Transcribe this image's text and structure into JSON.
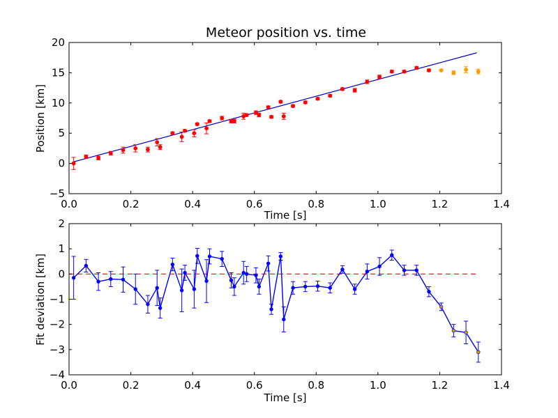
{
  "chart_data": [
    {
      "type": "scatter",
      "title": "Meteor position vs. time",
      "xlabel": "Time [s]",
      "ylabel": "Position [km]",
      "xlim": [
        0.0,
        1.4
      ],
      "ylim": [
        -5,
        20
      ],
      "x_ticks": [
        "0.0",
        "0.2",
        "0.4",
        "0.6",
        "0.8",
        "1.0",
        "1.2",
        "1.4"
      ],
      "y_ticks": [
        "−5",
        "0",
        "5",
        "10",
        "15",
        "20"
      ],
      "grid": false,
      "colors": {
        "data": "#ff0000",
        "excluded": "#ff9900",
        "fit": "#0000cc"
      },
      "fit_line": {
        "x": [
          0.01,
          1.32
        ],
        "y": [
          0.2,
          18.3
        ]
      },
      "series": [
        {
          "role": "data",
          "x": [
            0.015,
            0.055,
            0.095,
            0.135,
            0.175,
            0.215,
            0.255,
            0.285,
            0.295,
            0.335,
            0.365,
            0.375,
            0.405,
            0.415,
            0.445,
            0.455,
            0.495,
            0.525,
            0.535,
            0.565,
            0.575,
            0.605,
            0.615,
            0.645,
            0.655,
            0.685,
            0.695,
            0.725,
            0.765,
            0.805,
            0.845,
            0.885,
            0.925,
            0.965,
            1.005,
            1.045,
            1.085,
            1.125,
            1.165
          ],
          "y": [
            0.0,
            1.1,
            0.9,
            1.7,
            2.2,
            2.5,
            2.3,
            3.5,
            2.7,
            5.0,
            4.4,
            5.4,
            5.0,
            6.5,
            5.8,
            7.0,
            7.5,
            7.0,
            7.0,
            7.8,
            8.0,
            8.4,
            8.0,
            9.3,
            7.7,
            10.2,
            7.8,
            9.5,
            10.1,
            10.7,
            11.2,
            12.3,
            12.1,
            13.5,
            14.3,
            15.2,
            15.2,
            15.8,
            15.4
          ],
          "err": [
            1.0,
            0.3,
            0.3,
            0.3,
            0.5,
            0.6,
            0.4,
            0.6,
            0.4,
            0.2,
            0.8,
            0.2,
            0.6,
            0.2,
            0.9,
            0.2,
            0.3,
            0.3,
            0.3,
            0.5,
            0.2,
            0.3,
            0.3,
            0.2,
            0.2,
            0.2,
            0.5,
            0.2,
            0.2,
            0.2,
            0.2,
            0.2,
            0.3,
            0.3,
            0.3,
            0.2,
            0.2,
            0.2,
            0.2
          ]
        },
        {
          "role": "excluded",
          "x": [
            1.205,
            1.245,
            1.285,
            1.325
          ],
          "y": [
            15.4,
            15.0,
            15.5,
            15.2
          ],
          "err": [
            0.1,
            0.3,
            0.5,
            0.4
          ]
        }
      ]
    },
    {
      "type": "line",
      "title": "",
      "xlabel": "Time [s]",
      "ylabel": "Fit deviation [km]",
      "xlim": [
        0.0,
        1.4
      ],
      "ylim": [
        -4,
        2
      ],
      "x_ticks": [
        "0.0",
        "0.2",
        "0.4",
        "0.6",
        "0.8",
        "1.0",
        "1.2",
        "1.4"
      ],
      "y_ticks": [
        "−4",
        "−3",
        "−2",
        "−1",
        "0",
        "1",
        "2"
      ],
      "grid": false,
      "colors": {
        "line": "#0000ff",
        "excluded": "#cc9900",
        "zero_line": "#ff0000"
      },
      "zero_line": {
        "y": 0,
        "x": [
          0.0,
          1.32
        ]
      },
      "series": [
        {
          "role": "residuals",
          "x": [
            0.015,
            0.055,
            0.095,
            0.135,
            0.175,
            0.215,
            0.255,
            0.285,
            0.295,
            0.335,
            0.365,
            0.375,
            0.405,
            0.415,
            0.445,
            0.455,
            0.495,
            0.525,
            0.535,
            0.565,
            0.575,
            0.605,
            0.615,
            0.645,
            0.655,
            0.685,
            0.695,
            0.725,
            0.765,
            0.805,
            0.845,
            0.885,
            0.925,
            0.965,
            1.005,
            1.045,
            1.085,
            1.125,
            1.165,
            1.205,
            1.245,
            1.285,
            1.325
          ],
          "y": [
            -0.15,
            0.33,
            -0.3,
            -0.2,
            -0.22,
            -0.6,
            -1.2,
            -0.55,
            -1.35,
            0.38,
            -0.65,
            0.05,
            -0.6,
            0.72,
            -0.28,
            0.7,
            0.6,
            -0.25,
            -0.5,
            0.05,
            0.0,
            -0.05,
            -0.5,
            0.42,
            -1.4,
            0.7,
            -1.8,
            -0.55,
            -0.5,
            -0.48,
            -0.55,
            0.18,
            -0.6,
            0.1,
            0.3,
            0.75,
            0.15,
            0.15,
            -0.7,
            -1.3,
            -2.25,
            -2.32,
            -3.1
          ],
          "err": [
            0.85,
            0.25,
            0.35,
            0.3,
            0.5,
            0.6,
            0.35,
            0.7,
            0.4,
            0.25,
            0.85,
            0.3,
            0.75,
            0.3,
            0.85,
            0.3,
            0.3,
            0.3,
            0.35,
            0.45,
            0.3,
            0.3,
            0.3,
            0.3,
            0.2,
            0.15,
            0.5,
            0.25,
            0.2,
            0.2,
            0.2,
            0.15,
            0.2,
            0.3,
            0.35,
            0.2,
            0.2,
            0.2,
            0.2,
            0.15,
            0.25,
            0.45,
            0.4
          ]
        }
      ],
      "excluded_from": 1.2
    }
  ]
}
